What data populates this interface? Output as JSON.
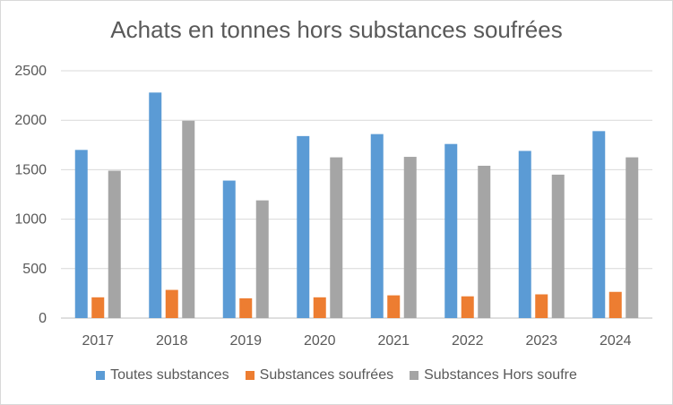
{
  "chart_data": {
    "type": "bar",
    "title": "Achats en tonnes hors substances soufrées",
    "xlabel": "",
    "ylabel": "",
    "ylim": [
      0,
      2500
    ],
    "yticks": [
      0,
      500,
      1000,
      1500,
      2000,
      2500
    ],
    "grid": true,
    "legend_position": "bottom",
    "categories": [
      "2017",
      "2018",
      "2019",
      "2020",
      "2021",
      "2022",
      "2023",
      "2024"
    ],
    "series": [
      {
        "name": "Toutes substances",
        "color": "#5b9bd5",
        "values": [
          1700,
          2280,
          1390,
          1840,
          1860,
          1760,
          1690,
          1890
        ]
      },
      {
        "name": "Substances soufrées",
        "color": "#ed7d31",
        "values": [
          210,
          285,
          200,
          210,
          230,
          220,
          240,
          265
        ]
      },
      {
        "name": "Substances Hors soufre",
        "color": "#a5a5a5",
        "values": [
          1490,
          1995,
          1190,
          1625,
          1630,
          1540,
          1450,
          1625
        ]
      }
    ]
  }
}
